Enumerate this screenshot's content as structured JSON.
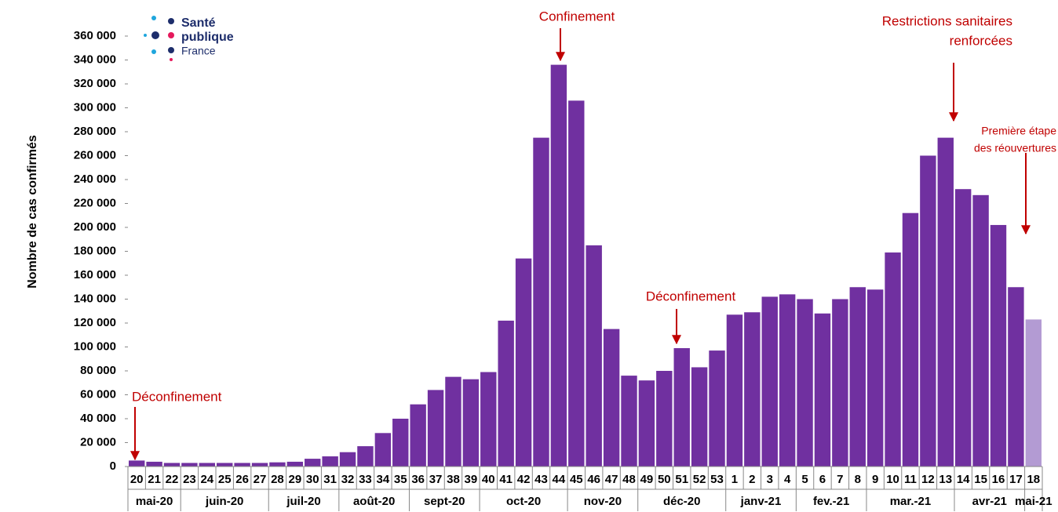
{
  "chart_data": {
    "type": "bar",
    "y_label": "Nombre de cas confirmés",
    "logo": [
      "Santé",
      "publique",
      "France"
    ],
    "groups": [
      {
        "label": "mai-20",
        "categories": [
          "20",
          "21",
          "22"
        ]
      },
      {
        "label": "juin-20",
        "categories": [
          "23",
          "24",
          "25",
          "26",
          "27"
        ]
      },
      {
        "label": "juil-20",
        "categories": [
          "28",
          "29",
          "30",
          "31"
        ]
      },
      {
        "label": "août-20",
        "categories": [
          "32",
          "33",
          "34",
          "35"
        ]
      },
      {
        "label": "sept-20",
        "categories": [
          "36",
          "37",
          "38",
          "39"
        ]
      },
      {
        "label": "oct-20",
        "categories": [
          "40",
          "41",
          "42",
          "43",
          "44"
        ]
      },
      {
        "label": "nov-20",
        "categories": [
          "45",
          "46",
          "47",
          "48"
        ]
      },
      {
        "label": "déc-20",
        "categories": [
          "49",
          "50",
          "51",
          "52",
          "53"
        ]
      },
      {
        "label": "janv-21",
        "categories": [
          "1",
          "2",
          "3",
          "4"
        ]
      },
      {
        "label": "fev.-21",
        "categories": [
          "5",
          "6",
          "7",
          "8"
        ]
      },
      {
        "label": "mar.-21",
        "categories": [
          "9",
          "10",
          "11",
          "12",
          "13"
        ]
      },
      {
        "label": "avr-21",
        "categories": [
          "14",
          "15",
          "16",
          "17"
        ]
      },
      {
        "label": "mai-21",
        "categories": [
          "18"
        ]
      }
    ],
    "values": [
      5000,
      4000,
      3000,
      3000,
      3000,
      3000,
      3000,
      3000,
      3500,
      4000,
      6500,
      8500,
      12000,
      17000,
      28000,
      40000,
      52000,
      64000,
      75000,
      73000,
      79000,
      122000,
      174000,
      275000,
      336000,
      306000,
      185000,
      115000,
      76000,
      72000,
      80000,
      99000,
      83000,
      97000,
      127000,
      129000,
      142000,
      144000,
      140000,
      128000,
      140000,
      150000,
      148000,
      179000,
      212000,
      260000,
      275000,
      232000,
      227000,
      202000,
      150000,
      123000
    ],
    "color": "#7030a0",
    "last_color": "#b39bd3",
    "ylim": [
      0,
      360000
    ],
    "yticks": [
      0,
      {
        "value": 20000,
        "label": "20 000"
      },
      {
        "value": 40000,
        "label": "40 000"
      },
      {
        "value": 60000,
        "label": "60 000"
      },
      {
        "value": 80000,
        "label": "80 000"
      },
      {
        "value": 100000,
        "label": "100 000"
      },
      {
        "value": 120000,
        "label": "120 000"
      },
      {
        "value": 140000,
        "label": "140 000"
      },
      {
        "value": 160000,
        "label": "160 000"
      },
      {
        "value": 180000,
        "label": "180 000"
      },
      {
        "value": 200000,
        "label": "200 000"
      },
      {
        "value": 220000,
        "label": "220 000"
      },
      {
        "value": 240000,
        "label": "240 000"
      },
      {
        "value": 260000,
        "label": "260 000"
      },
      {
        "value": 280000,
        "label": "280 000"
      },
      {
        "value": 300000,
        "label": "300 000"
      },
      {
        "value": 320000,
        "label": "320 000"
      },
      {
        "value": 340000,
        "label": "340 000"
      },
      {
        "value": 360000,
        "label": "360 000"
      }
    ],
    "annotations": [
      {
        "lines": [
          "Déconfinement"
        ]
      },
      {
        "lines": [
          "Confinement"
        ]
      },
      {
        "lines": [
          "Déconfinement"
        ]
      },
      {
        "lines": [
          "Restrictions sanitaires",
          "renforcées"
        ]
      },
      {
        "lines": [
          "Première étape",
          "des réouvertures"
        ]
      }
    ]
  }
}
